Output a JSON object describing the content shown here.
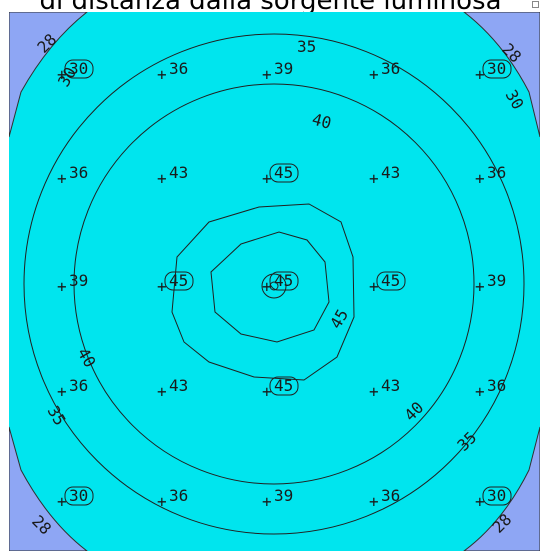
{
  "title": "di distanza dalla sorgente luminosa",
  "colors": {
    "field": "#00e5ee",
    "corner_zone": "#8ea6f4",
    "contour": "#202020"
  },
  "grid_values": [
    [
      "30",
      "36",
      "39",
      "36",
      "30"
    ],
    [
      "36",
      "43",
      "45",
      "43",
      "36"
    ],
    [
      "39",
      "45",
      "45",
      "45",
      "39"
    ],
    [
      "36",
      "43",
      "45",
      "43",
      "36"
    ],
    [
      "30",
      "36",
      "39",
      "36",
      "30"
    ]
  ],
  "contour_labels": [
    "35",
    "40",
    "45",
    "28",
    "28",
    "28",
    "28",
    "30",
    "30",
    "35",
    "35",
    "40",
    "40"
  ]
}
